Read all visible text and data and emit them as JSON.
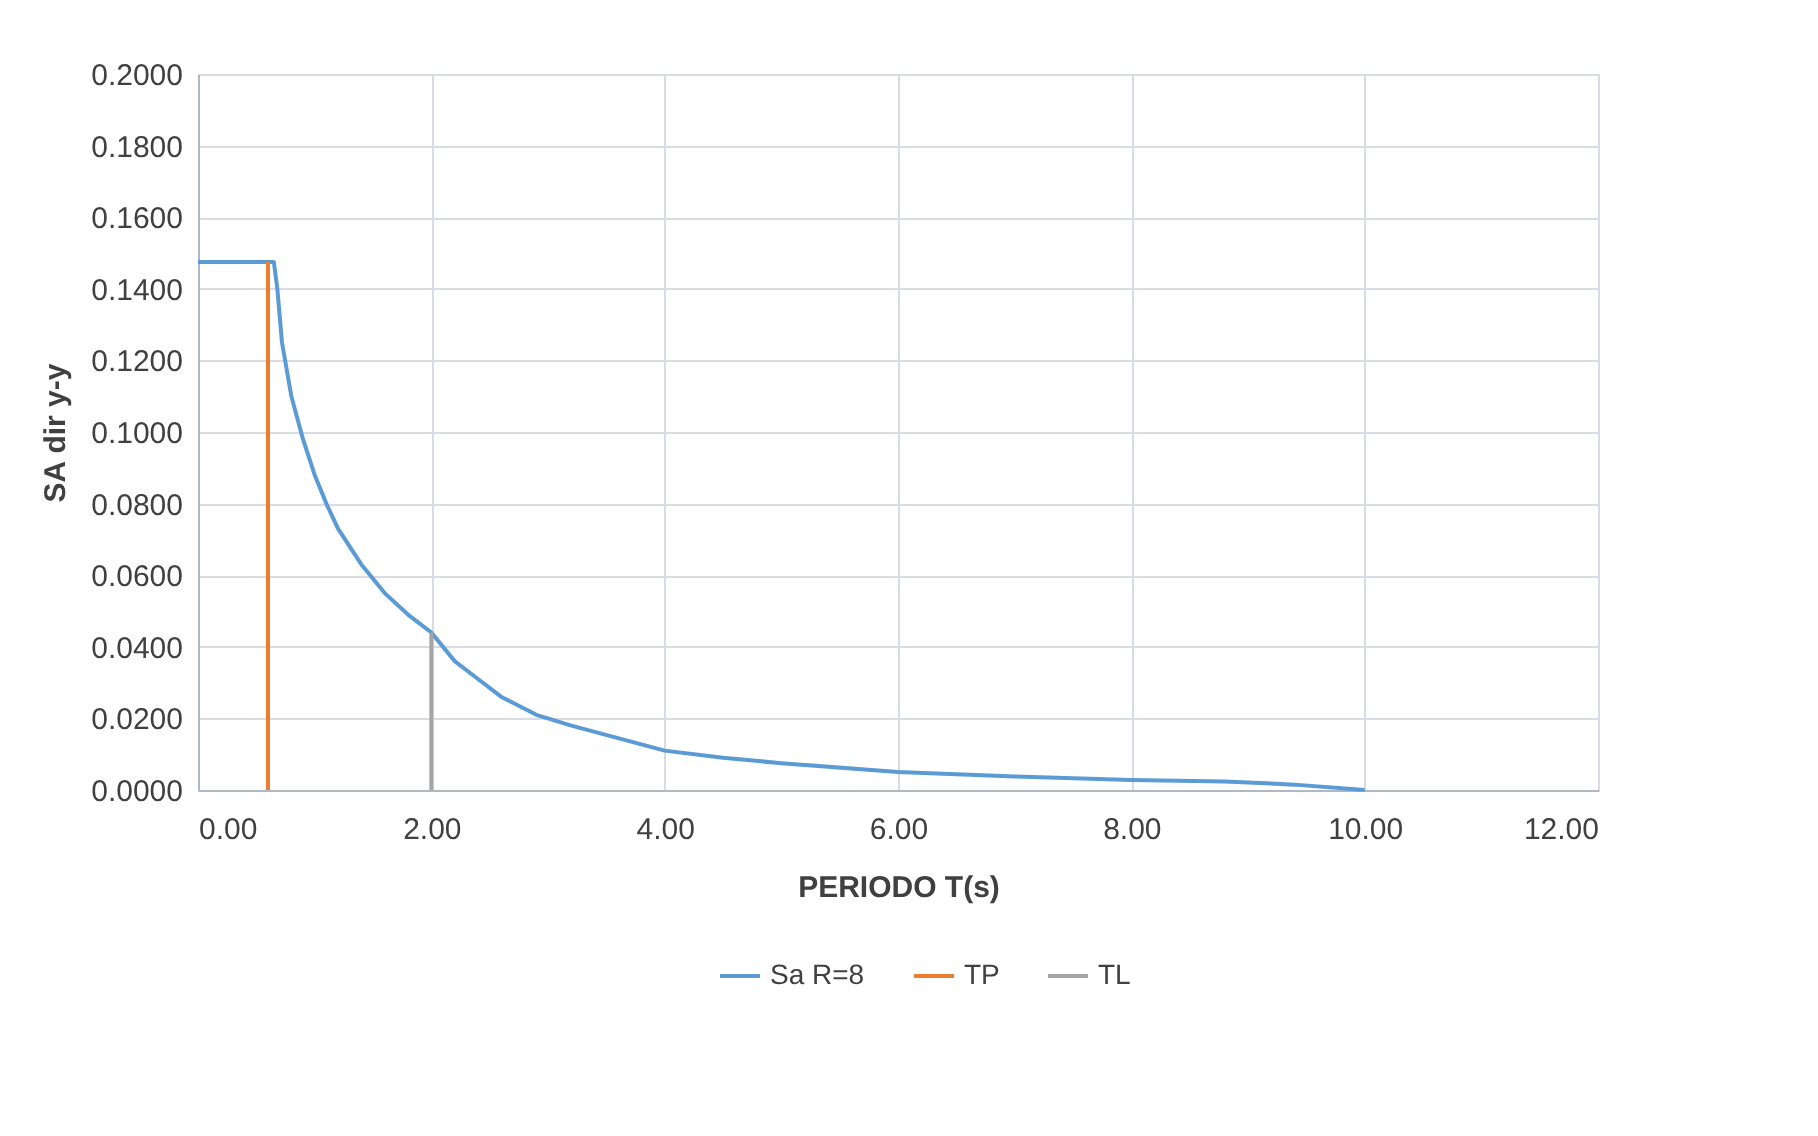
{
  "chart_data": {
    "type": "line",
    "xlabel": "PERIODO T(s)",
    "ylabel": "SA dir y-y",
    "xlim": [
      0,
      12
    ],
    "xticks": [
      {
        "value": 0,
        "label": "0.00"
      },
      {
        "value": 2,
        "label": "2.00"
      },
      {
        "value": 4,
        "label": "4.00"
      },
      {
        "value": 6,
        "label": "6.00"
      },
      {
        "value": 8,
        "label": "8.00"
      },
      {
        "value": 10,
        "label": "10.00"
      },
      {
        "value": 12,
        "label": "12.00"
      }
    ],
    "ylim": [
      0,
      0.2
    ],
    "yticks": [
      {
        "value": 0,
        "label": "0.0000"
      },
      {
        "value": 0.02,
        "label": "0.0200"
      },
      {
        "value": 0.04,
        "label": "0.0400"
      },
      {
        "value": 0.06,
        "label": "0.0600"
      },
      {
        "value": 0.08,
        "label": "0.0800"
      },
      {
        "value": 0.1,
        "label": "0.1000"
      },
      {
        "value": 0.12,
        "label": "0.1200"
      },
      {
        "value": 0.14,
        "label": "0.1400"
      },
      {
        "value": 0.16,
        "label": "0.1600"
      },
      {
        "value": 0.18,
        "label": "0.1800"
      },
      {
        "value": 0.2,
        "label": "0.2000"
      }
    ],
    "grid": true,
    "legend": "bottom",
    "marker": "none",
    "line_style": "solid",
    "series": [
      {
        "name": "Sa R=8",
        "color": "#5b9bd5",
        "x": [
          0,
          0.6,
          0.65,
          0.68,
          0.72,
          0.8,
          0.9,
          1.0,
          1.1,
          1.2,
          1.4,
          1.6,
          1.8,
          2.0,
          2.2,
          2.4,
          2.6,
          2.9,
          3.2,
          3.6,
          4.0,
          4.5,
          5.0,
          6.0,
          7.0,
          8.0,
          8.8,
          9.4,
          10.0
        ],
        "values": [
          0.1475,
          0.1475,
          0.1475,
          0.14,
          0.125,
          0.11,
          0.098,
          0.088,
          0.08,
          0.073,
          0.063,
          0.055,
          0.049,
          0.044,
          0.036,
          0.031,
          0.026,
          0.021,
          0.018,
          0.0145,
          0.011,
          0.009,
          0.0075,
          0.005,
          0.0038,
          0.0028,
          0.0024,
          0.0015,
          0
        ]
      },
      {
        "name": "TP",
        "color": "#ed7d31",
        "x": [
          0.6,
          0.6
        ],
        "values": [
          0,
          0.1475
        ]
      },
      {
        "name": "TL",
        "color": "#a5a5a5",
        "x": [
          2.0,
          2.0
        ],
        "values": [
          0,
          0.044
        ]
      }
    ]
  }
}
